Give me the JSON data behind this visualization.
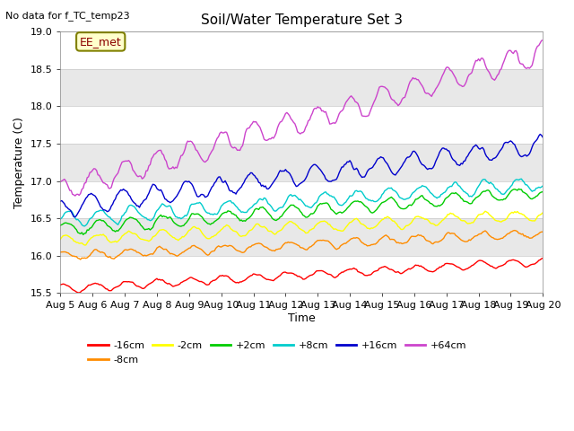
{
  "title": "Soil/Water Temperature Set 3",
  "xlabel": "Time",
  "ylabel": "Temperature (C)",
  "top_left_text": "No data for f_TC_temp23",
  "legend_box_text": "EE_met",
  "ylim": [
    15.5,
    19.0
  ],
  "xlim": [
    0,
    360
  ],
  "x_tick_labels": [
    "Aug 5",
    "Aug 6",
    "Aug 7",
    "Aug 8",
    "Aug 9",
    "Aug 10",
    "Aug 11",
    "Aug 12",
    "Aug 13",
    "Aug 14",
    "Aug 15",
    "Aug 16",
    "Aug 17",
    "Aug 18",
    "Aug 19",
    "Aug 20"
  ],
  "x_tick_positions": [
    0,
    24,
    48,
    72,
    96,
    120,
    144,
    168,
    192,
    216,
    240,
    264,
    288,
    312,
    336,
    360
  ],
  "series": [
    {
      "label": "-16cm",
      "color": "#ff0000",
      "start": 15.56,
      "end": 15.92,
      "amplitude": 0.05,
      "noise_scale": 0.015,
      "phase": 1.2
    },
    {
      "label": "-8cm",
      "color": "#ff8c00",
      "start": 15.99,
      "end": 16.3,
      "amplitude": 0.055,
      "noise_scale": 0.018,
      "phase": 0.8
    },
    {
      "label": "-2cm",
      "color": "#ffff00",
      "start": 16.2,
      "end": 16.55,
      "amplitude": 0.07,
      "noise_scale": 0.02,
      "phase": 0.5
    },
    {
      "label": "+2cm",
      "color": "#00cc00",
      "start": 16.35,
      "end": 16.85,
      "amplitude": 0.08,
      "noise_scale": 0.022,
      "phase": 0.3
    },
    {
      "label": "+8cm",
      "color": "#00cccc",
      "start": 16.48,
      "end": 16.97,
      "amplitude": 0.09,
      "noise_scale": 0.025,
      "phase": 0.1
    },
    {
      "label": "+16cm",
      "color": "#0000cc",
      "start": 16.65,
      "end": 17.48,
      "amplitude": 0.12,
      "noise_scale": 0.03,
      "phase": 2.0
    },
    {
      "label": "+64cm",
      "color": "#cc44cc",
      "start": 16.88,
      "end": 18.72,
      "amplitude": 0.15,
      "noise_scale": 0.04,
      "phase": 1.5
    }
  ],
  "band_colors": [
    "#ffffff",
    "#e8e8e8"
  ],
  "band_edges": [
    15.5,
    16.0,
    16.5,
    17.0,
    17.5,
    18.0,
    18.5,
    19.0
  ],
  "grid_color": "#c8c8c8",
  "fig_bg_color": "#ffffff",
  "linewidth": 1.0
}
